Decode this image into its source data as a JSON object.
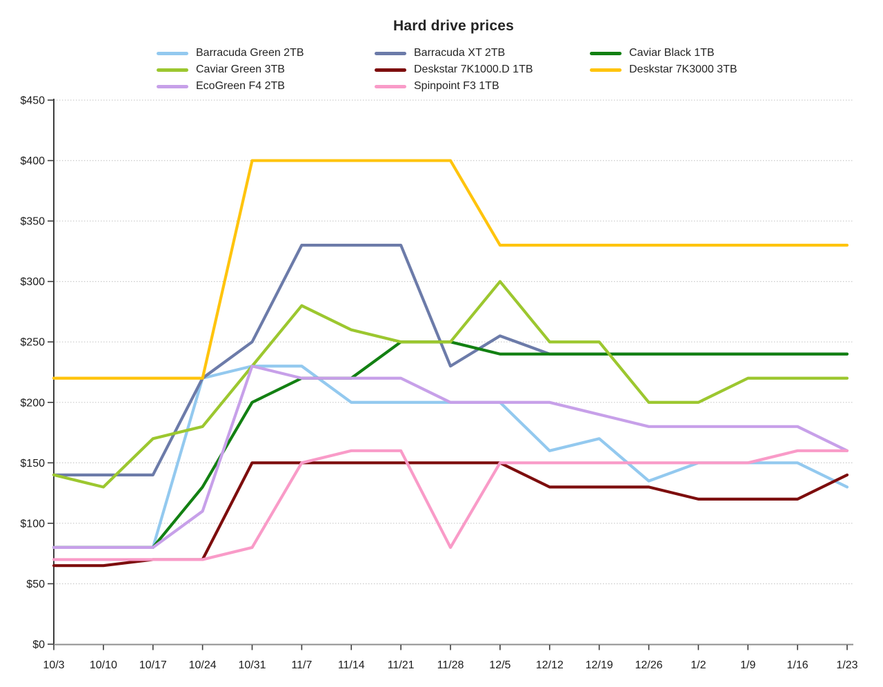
{
  "title": "Hard drive prices",
  "chart_data": {
    "type": "line",
    "title": "Hard drive prices",
    "xlabel": "",
    "ylabel": "",
    "ylim": [
      0,
      450
    ],
    "ytick_interval": 50,
    "y_ticks": {
      "values": [
        0,
        50,
        100,
        150,
        200,
        250,
        300,
        350,
        400,
        450
      ],
      "labels": [
        "$0",
        "$50",
        "$100",
        "$150",
        "$200",
        "$250",
        "$300",
        "$350",
        "$400",
        "$450"
      ]
    },
    "grid": "horizontal-dotted",
    "legend_position": "top",
    "categories": [
      "10/3",
      "10/10",
      "10/17",
      "10/24",
      "10/31",
      "11/7",
      "11/14",
      "11/21",
      "11/28",
      "12/5",
      "12/12",
      "12/19",
      "12/26",
      "1/2",
      "1/9",
      "1/16",
      "1/23"
    ],
    "series": [
      {
        "name": "Barracuda Green 2TB",
        "color": "#93C9EF",
        "values": [
          80,
          80,
          80,
          220,
          230,
          230,
          200,
          200,
          200,
          200,
          160,
          170,
          135,
          150,
          150,
          150,
          130
        ]
      },
      {
        "name": "Barracuda XT 2TB",
        "color": "#6C7BA9",
        "values": [
          140,
          140,
          140,
          220,
          250,
          330,
          330,
          330,
          230,
          255,
          240,
          240,
          240,
          240,
          240,
          240,
          240
        ]
      },
      {
        "name": "Caviar Black 1TB",
        "color": "#128012",
        "values": [
          80,
          80,
          80,
          130,
          200,
          220,
          220,
          250,
          250,
          240,
          240,
          240,
          240,
          240,
          240,
          240,
          240
        ]
      },
      {
        "name": "Caviar Green 3TB",
        "color": "#9CC72F",
        "values": [
          140,
          130,
          170,
          180,
          230,
          280,
          260,
          250,
          250,
          300,
          250,
          250,
          200,
          200,
          220,
          220,
          220
        ]
      },
      {
        "name": "Deskstar 7K1000.D 1TB",
        "color": "#7D0D0D",
        "values": [
          65,
          65,
          70,
          70,
          150,
          150,
          150,
          150,
          150,
          150,
          130,
          130,
          130,
          120,
          120,
          120,
          140
        ]
      },
      {
        "name": "Deskstar 7K3000 3TB",
        "color": "#FFC40D",
        "values": [
          220,
          220,
          220,
          220,
          400,
          400,
          400,
          400,
          400,
          330,
          330,
          330,
          330,
          330,
          330,
          330,
          330
        ]
      },
      {
        "name": "EcoGreen F4 2TB",
        "color": "#C7A0E9",
        "values": [
          80,
          80,
          80,
          110,
          230,
          220,
          220,
          220,
          200,
          200,
          200,
          190,
          180,
          180,
          180,
          180,
          160
        ]
      },
      {
        "name": "Spinpoint F3 1TB",
        "color": "#F99BC8",
        "values": [
          70,
          70,
          70,
          70,
          80,
          150,
          160,
          160,
          80,
          150,
          150,
          150,
          150,
          150,
          150,
          160,
          160
        ]
      }
    ]
  },
  "style_colors": {
    "grid": "#CBCBCB",
    "y_axis": "#3C3C3C",
    "x_axis": "#8F8F8F",
    "tick": "#3C3C3C",
    "label_text": "#1C1C1C"
  }
}
